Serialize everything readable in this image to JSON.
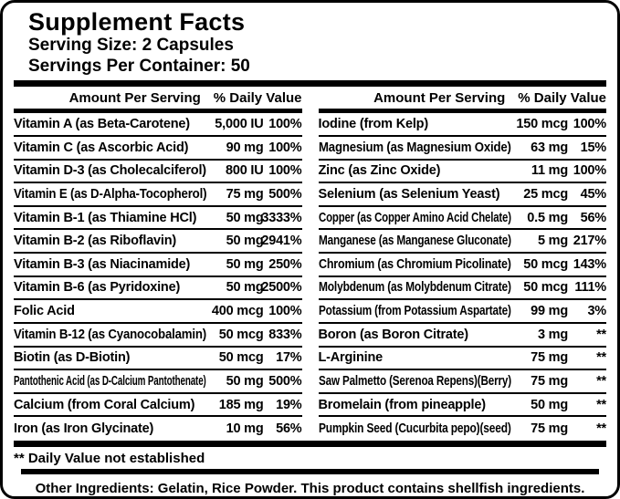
{
  "header": {
    "title": "Supplement Facts",
    "serving_size": "Serving Size: 2 Capsules",
    "servings_per_container": "Servings Per Container: 50"
  },
  "column_headers": {
    "amount": "Amount Per Serving",
    "daily_value": "% Daily Value"
  },
  "left_rows": [
    {
      "label": "Vitamin A (as Beta-Carotene)",
      "amount": "5,000 IU",
      "dv": "100%"
    },
    {
      "label": "Vitamin C (as Ascorbic Acid)",
      "amount": "90 mg",
      "dv": "100%"
    },
    {
      "label": "Vitamin D-3 (as Cholecalciferol)",
      "amount": "800 IU",
      "dv": "100%"
    },
    {
      "label": "Vitamin E (as D-Alpha-Tocopherol)",
      "amount": "75 mg",
      "dv": "500%"
    },
    {
      "label": "Vitamin B-1 (as Thiamine HCl)",
      "amount": "50 mg",
      "dv": "3333%"
    },
    {
      "label": "Vitamin B-2 (as Riboflavin)",
      "amount": "50 mg",
      "dv": "2941%"
    },
    {
      "label": "Vitamin B-3 (as Niacinamide)",
      "amount": "50 mg",
      "dv": "250%"
    },
    {
      "label": "Vitamin B-6 (as Pyridoxine)",
      "amount": "50 mg",
      "dv": "2500%"
    },
    {
      "label": "Folic Acid",
      "amount": "400 mcg",
      "dv": "100%"
    },
    {
      "label": "Vitamin B-12 (as Cyanocobalamin)",
      "amount": "50 mcg",
      "dv": "833%"
    },
    {
      "label": "Biotin (as D-Biotin)",
      "amount": "50 mcg",
      "dv": "17%"
    },
    {
      "label": "Pantothenic Acid (as D-Calcium Pantothenate)",
      "amount": "50 mg",
      "dv": "500%"
    },
    {
      "label": "Calcium (from Coral Calcium)",
      "amount": "185 mg",
      "dv": "19%"
    },
    {
      "label": "Iron (as Iron Glycinate)",
      "amount": "10 mg",
      "dv": "56%"
    }
  ],
  "right_rows": [
    {
      "label": "Iodine (from Kelp)",
      "amount": "150 mcg",
      "dv": "100%"
    },
    {
      "label": "Magnesium (as Magnesium Oxide)",
      "amount": "63 mg",
      "dv": "15%"
    },
    {
      "label": "Zinc (as Zinc Oxide)",
      "amount": "11 mg",
      "dv": "100%"
    },
    {
      "label": "Selenium (as Selenium Yeast)",
      "amount": "25 mcg",
      "dv": "45%"
    },
    {
      "label": "Copper (as Copper Amino Acid Chelate)",
      "amount": "0.5 mg",
      "dv": "56%"
    },
    {
      "label": "Manganese (as Manganese Gluconate)",
      "amount": "5 mg",
      "dv": "217%"
    },
    {
      "label": "Chromium (as Chromium Picolinate)",
      "amount": "50 mcg",
      "dv": "143%"
    },
    {
      "label": "Molybdenum (as Molybdenum Citrate)",
      "amount": "50 mcg",
      "dv": "111%"
    },
    {
      "label": "Potassium (from Potassium Aspartate)",
      "amount": "99 mg",
      "dv": "3%"
    },
    {
      "label": "Boron (as Boron Citrate)",
      "amount": "3 mg",
      "dv": "**"
    },
    {
      "label": "L-Arginine",
      "amount": "75 mg",
      "dv": "**"
    },
    {
      "label": "Saw Palmetto (Serenoa Repens)(Berry)",
      "amount": "75 mg",
      "dv": "**"
    },
    {
      "label": "Bromelain (from pineapple)",
      "amount": "50 mg",
      "dv": "**"
    },
    {
      "label": "Pumpkin Seed (Cucurbita pepo)(seed)",
      "amount": "75 mg",
      "dv": "**"
    }
  ],
  "footnote": "** Daily Value not established",
  "other_ingredients": "Other Ingredients: Gelatin, Rice Powder. This product contains shellfish ingredients.",
  "colors": {
    "ink": "#000000",
    "background": "#ffffff"
  }
}
